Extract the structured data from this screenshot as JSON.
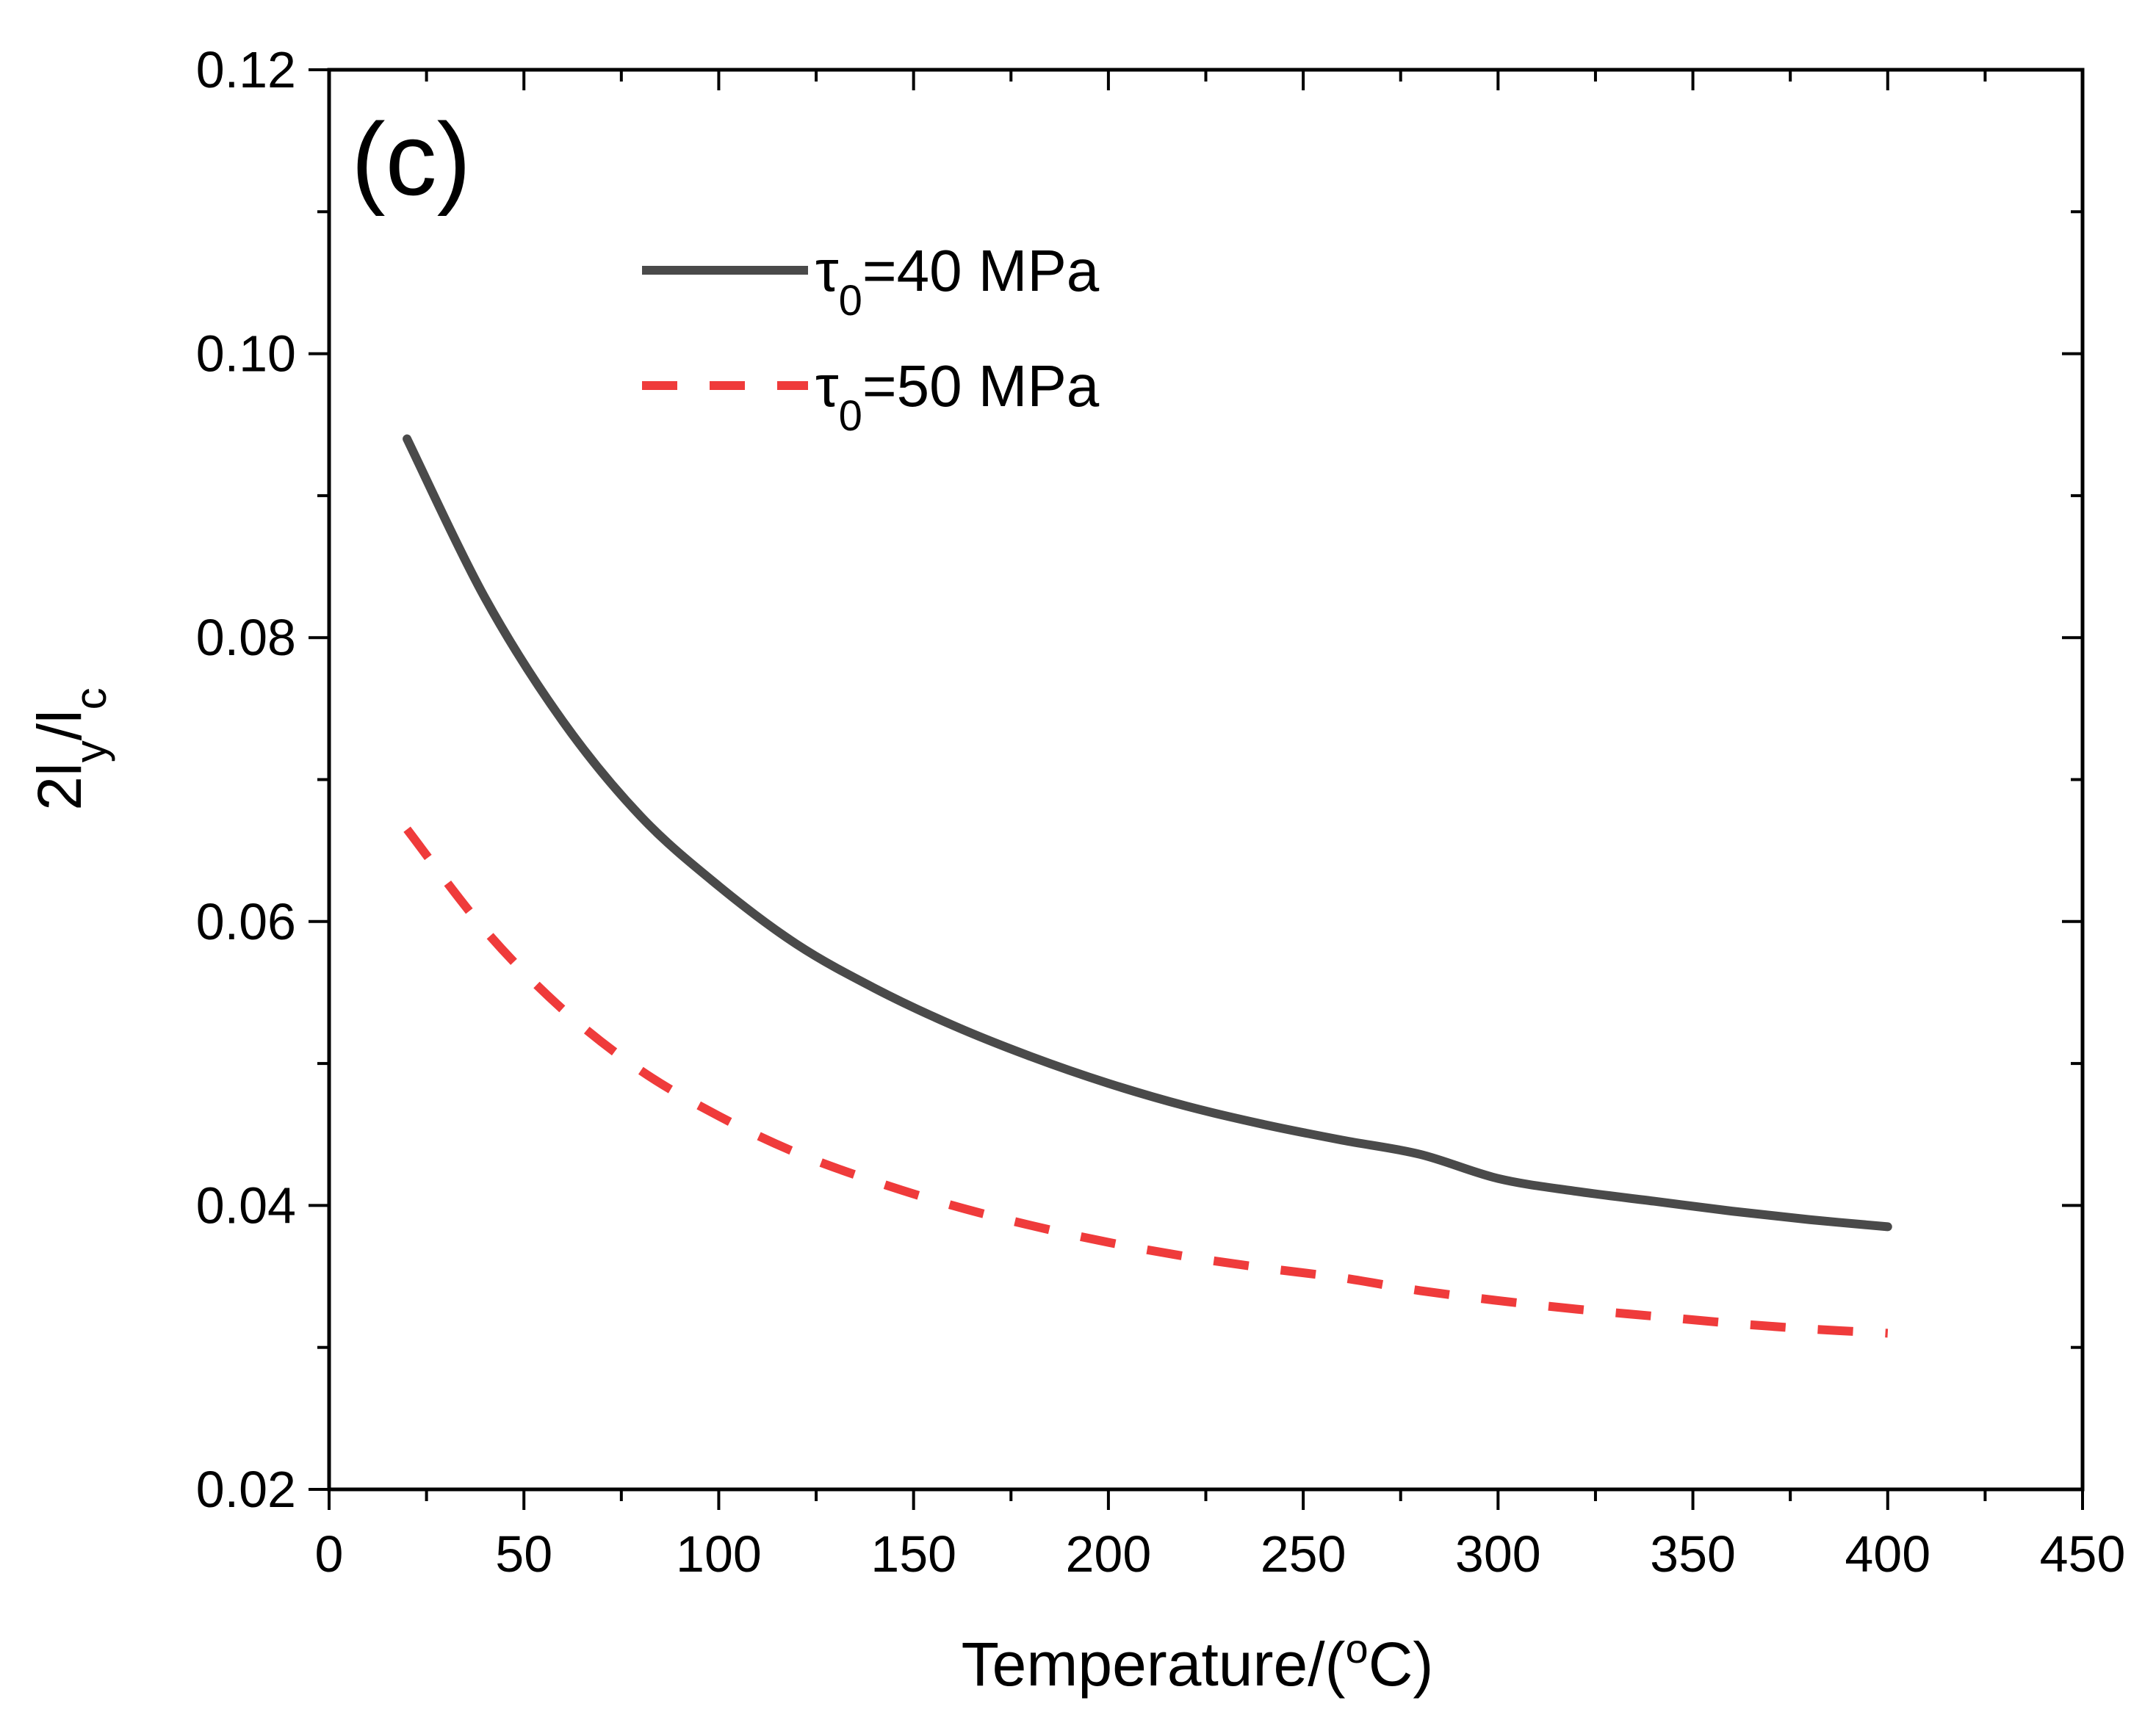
{
  "chart_data": {
    "type": "line",
    "panel_label": "(c)",
    "title": "",
    "xlabel": "Temperature/(°C)",
    "xlabel_parts": {
      "pre": "Temperature/(",
      "sup": "o",
      "post": "C)"
    },
    "ylabel": "2ly/lc",
    "ylabel_parts": {
      "a": "2l",
      "sub1": "y",
      "b": "/l",
      "sub2": "c"
    },
    "xlim": [
      0,
      450
    ],
    "ylim": [
      0.02,
      0.12
    ],
    "xticks": [
      0,
      50,
      100,
      150,
      200,
      250,
      300,
      350,
      400,
      450
    ],
    "xtick_labels": [
      "0",
      "50",
      "100",
      "150",
      "200",
      "250",
      "300",
      "350",
      "400",
      "450"
    ],
    "yticks": [
      0.02,
      0.04,
      0.06,
      0.08,
      0.1,
      0.12
    ],
    "ytick_labels": [
      "0.02",
      "0.04",
      "0.06",
      "0.08",
      "0.10",
      "0.12"
    ],
    "grid": false,
    "legend_position": "top-left",
    "series": [
      {
        "name": "τ0=40 MPa",
        "legend_symbol": "τ",
        "legend_sub": "0",
        "legend_rest": "=40 MPa",
        "color": "#4a4a4a",
        "style": "solid",
        "x": [
          20,
          40,
          60,
          80,
          100,
          120,
          140,
          160,
          180,
          200,
          220,
          240,
          260,
          280,
          300,
          320,
          340,
          360,
          380,
          400
        ],
        "y": [
          0.094,
          0.0828,
          0.0741,
          0.0674,
          0.0625,
          0.0584,
          0.0553,
          0.0527,
          0.0505,
          0.0486,
          0.047,
          0.0457,
          0.0446,
          0.0436,
          0.0419,
          0.041,
          0.0403,
          0.0396,
          0.039,
          0.0385
        ]
      },
      {
        "name": "τ0=50 MPa",
        "legend_symbol": "τ",
        "legend_sub": "0",
        "legend_rest": "=50 MPa",
        "color": "#ef3b3b",
        "style": "dashed",
        "x": [
          20,
          40,
          60,
          80,
          100,
          120,
          140,
          160,
          180,
          200,
          220,
          240,
          260,
          280,
          300,
          320,
          340,
          360,
          380,
          400
        ],
        "y": [
          0.0665,
          0.0594,
          0.0538,
          0.0495,
          0.0463,
          0.0437,
          0.0417,
          0.04,
          0.0386,
          0.0374,
          0.0364,
          0.0356,
          0.0349,
          0.034,
          0.0333,
          0.0327,
          0.0322,
          0.0317,
          0.0313,
          0.031
        ]
      }
    ]
  }
}
